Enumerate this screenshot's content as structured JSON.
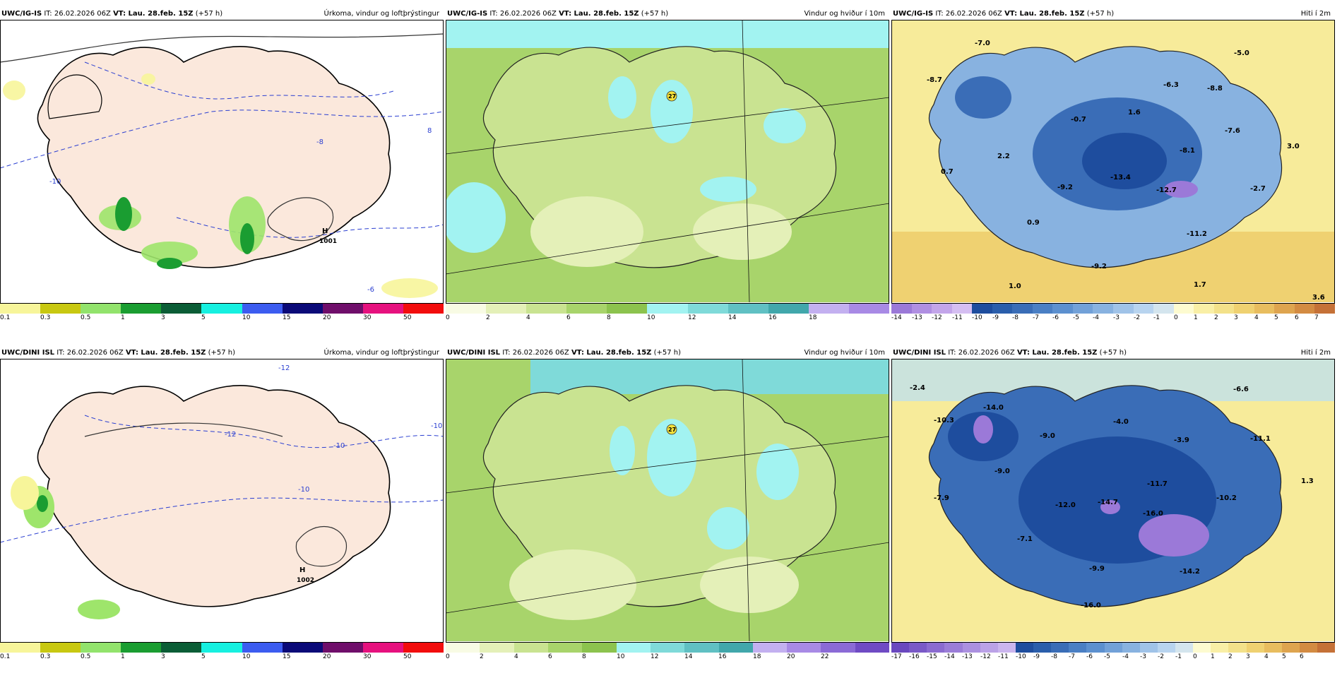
{
  "panels": [
    {
      "model": "UWC/IG-IS",
      "it": "IT: 26.02.2026 06Z",
      "vt": "VT: Lau. 28.feb. 15Z",
      "lead": "(+57 h)",
      "title": "Úrkoma, vindur og loftþrýstingur",
      "legend_ticks": [
        "0.1",
        "0.3",
        "0.5",
        "1",
        "3",
        "5",
        "10",
        "15",
        "20",
        "30",
        "50"
      ],
      "legend_colors": [
        "#f7f59a",
        "#c8c811",
        "#92e36c",
        "#1a9d31",
        "#0b5d36",
        "#16f0e0",
        "#3c5cf0",
        "#0b0a78",
        "#6f0e6a",
        "#e6117e",
        "#f20d0d"
      ],
      "labels": [
        {
          "text": "H",
          "kind": "pressure"
        },
        {
          "text": "1001",
          "kind": "pressure"
        },
        {
          "text": "-10",
          "kind": "iso"
        },
        {
          "text": "-8",
          "kind": "iso"
        },
        {
          "text": "-6",
          "kind": "iso"
        },
        {
          "text": "8",
          "kind": "iso"
        }
      ]
    },
    {
      "model": "UWC/IG-IS",
      "it": "IT: 26.02.2026 06Z",
      "vt": "VT: Lau. 28.feb. 15Z",
      "lead": "(+57 h)",
      "title": "Vindur og hviður í 10m",
      "legend_ticks": [
        "0",
        "2",
        "4",
        "6",
        "8",
        "10",
        "12",
        "14",
        "16",
        "18"
      ],
      "legend_colors": [
        "#f8fbe4",
        "#e4f0b8",
        "#c9e391",
        "#a8d46b",
        "#8cc34e",
        "#a2f3f1",
        "#7fdad9",
        "#60c0c3",
        "#41a7ab",
        "#c3b0f0",
        "#a88ae5"
      ],
      "labels": [
        {
          "text": "27",
          "kind": "max"
        }
      ]
    },
    {
      "model": "UWC/IG-IS",
      "it": "IT: 26.02.2026 06Z",
      "vt": "VT: Lau. 28.feb. 15Z",
      "lead": "(+57 h)",
      "title": "Hiti í 2m",
      "legend_ticks": [
        "-14",
        "-13",
        "-12",
        "-11",
        "-10",
        "-9",
        "-8",
        "-7",
        "-6",
        "-5",
        "-4",
        "-3",
        "-2",
        "-1",
        "0",
        "1",
        "2",
        "3",
        "4",
        "5",
        "6",
        "7"
      ],
      "legend_colors": [
        "#9b79d8",
        "#b08fe2",
        "#c3a5ea",
        "#d5bef2",
        "#1e4d9e",
        "#2a5eab",
        "#3a6db7",
        "#4a7fc4",
        "#5c90cf",
        "#72a1d8",
        "#88b2e0",
        "#a0c3e8",
        "#b8d4ef",
        "#d4e5ee",
        "#fdfbd0",
        "#f9efa6",
        "#f3e18a",
        "#efd171",
        "#e8bd5f",
        "#dea44f",
        "#d38b42",
        "#c57137"
      ],
      "labels": [
        {
          "text": "-7.0"
        },
        {
          "text": "-8.7"
        },
        {
          "text": "-0.7"
        },
        {
          "text": "1.6"
        },
        {
          "text": "-6.3"
        },
        {
          "text": "-8.8"
        },
        {
          "text": "-5.0"
        },
        {
          "text": "-7.6"
        },
        {
          "text": "3.0"
        },
        {
          "text": "-8.1"
        },
        {
          "text": "2.2"
        },
        {
          "text": "0.7"
        },
        {
          "text": "-9.2"
        },
        {
          "text": "-13.4"
        },
        {
          "text": "-12.7"
        },
        {
          "text": "-2.7"
        },
        {
          "text": "0.9"
        },
        {
          "text": "-11.2"
        },
        {
          "text": "-9.2"
        },
        {
          "text": "1.0"
        },
        {
          "text": "1.7"
        },
        {
          "text": "3.6"
        }
      ]
    },
    {
      "model": "UWC/DINI ISL",
      "it": "IT: 26.02.2026 06Z",
      "vt": "VT: Lau. 28.feb. 15Z",
      "lead": "(+57 h)",
      "title": "Úrkoma, vindur og loftþrýstingur",
      "legend_ticks": [
        "0.1",
        "0.3",
        "0.5",
        "1",
        "3",
        "5",
        "10",
        "15",
        "20",
        "30",
        "50"
      ],
      "legend_colors": [
        "#f7f59a",
        "#c8c811",
        "#92e36c",
        "#1a9d31",
        "#0b5d36",
        "#16f0e0",
        "#3c5cf0",
        "#0b0a78",
        "#6f0e6a",
        "#e6117e",
        "#f20d0d"
      ],
      "labels": [
        {
          "text": "H",
          "kind": "pressure"
        },
        {
          "text": "1002",
          "kind": "pressure"
        },
        {
          "text": "-12",
          "kind": "iso"
        },
        {
          "text": "-10",
          "kind": "iso"
        },
        {
          "text": "-12",
          "kind": "iso"
        },
        {
          "text": "-10",
          "kind": "iso"
        },
        {
          "text": "-10",
          "kind": "iso"
        }
      ]
    },
    {
      "model": "UWC/DINI ISL",
      "it": "IT: 26.02.2026 06Z",
      "vt": "VT: Lau. 28.feb. 15Z",
      "lead": "(+57 h)",
      "title": "Vindur og hviður í 10m",
      "legend_ticks": [
        "0",
        "2",
        "4",
        "6",
        "8",
        "10",
        "12",
        "14",
        "16",
        "18",
        "20",
        "22"
      ],
      "legend_colors": [
        "#f8fbe4",
        "#e4f0b8",
        "#c9e391",
        "#a8d46b",
        "#8cc34e",
        "#a2f3f1",
        "#7fdad9",
        "#60c0c3",
        "#41a7ab",
        "#c3b0f0",
        "#a88ae5",
        "#8b6ad6",
        "#6f4bc4"
      ],
      "labels": [
        {
          "text": "27",
          "kind": "max"
        }
      ]
    },
    {
      "model": "UWC/DINI ISL",
      "it": "IT: 26.02.2026 06Z",
      "vt": "VT: Lau. 28.feb. 15Z",
      "lead": "(+57 h)",
      "title": "Hiti í 2m",
      "legend_ticks": [
        "-17",
        "-16",
        "-15",
        "-14",
        "-13",
        "-12",
        "-11",
        "-10",
        "-9",
        "-8",
        "-7",
        "-6",
        "-5",
        "-4",
        "-3",
        "-2",
        "-1",
        "0",
        "1",
        "2",
        "3",
        "4",
        "5",
        "6"
      ],
      "legend_colors": [
        "#6a48bf",
        "#7a59c7",
        "#8b6bd0",
        "#9b7dd8",
        "#ab90e0",
        "#bba2e7",
        "#cbb5ee",
        "#1e4d9e",
        "#2a5eab",
        "#3a6db7",
        "#4a7fc4",
        "#5c90cf",
        "#72a1d8",
        "#88b2e0",
        "#a0c3e8",
        "#b8d4ef",
        "#d4e5ee",
        "#fdfbd0",
        "#f9efa6",
        "#f3e18a",
        "#efd171",
        "#e8bd5f",
        "#dea44f",
        "#d38b42",
        "#c57137"
      ],
      "labels": [
        {
          "text": "-2.4"
        },
        {
          "text": "-14.0"
        },
        {
          "text": "-10.3"
        },
        {
          "text": "-4.0"
        },
        {
          "text": "-6.6"
        },
        {
          "text": "-9.0"
        },
        {
          "text": "-3.9"
        },
        {
          "text": "-11.1"
        },
        {
          "text": "-9.0"
        },
        {
          "text": "-11.7"
        },
        {
          "text": "1.3"
        },
        {
          "text": "-7.9"
        },
        {
          "text": "-12.0"
        },
        {
          "text": "-14.7"
        },
        {
          "text": "-16.0"
        },
        {
          "text": "-10.2"
        },
        {
          "text": "-7.1"
        },
        {
          "text": "-9.9"
        },
        {
          "text": "-14.2"
        },
        {
          "text": "-16.0"
        }
      ]
    }
  ]
}
